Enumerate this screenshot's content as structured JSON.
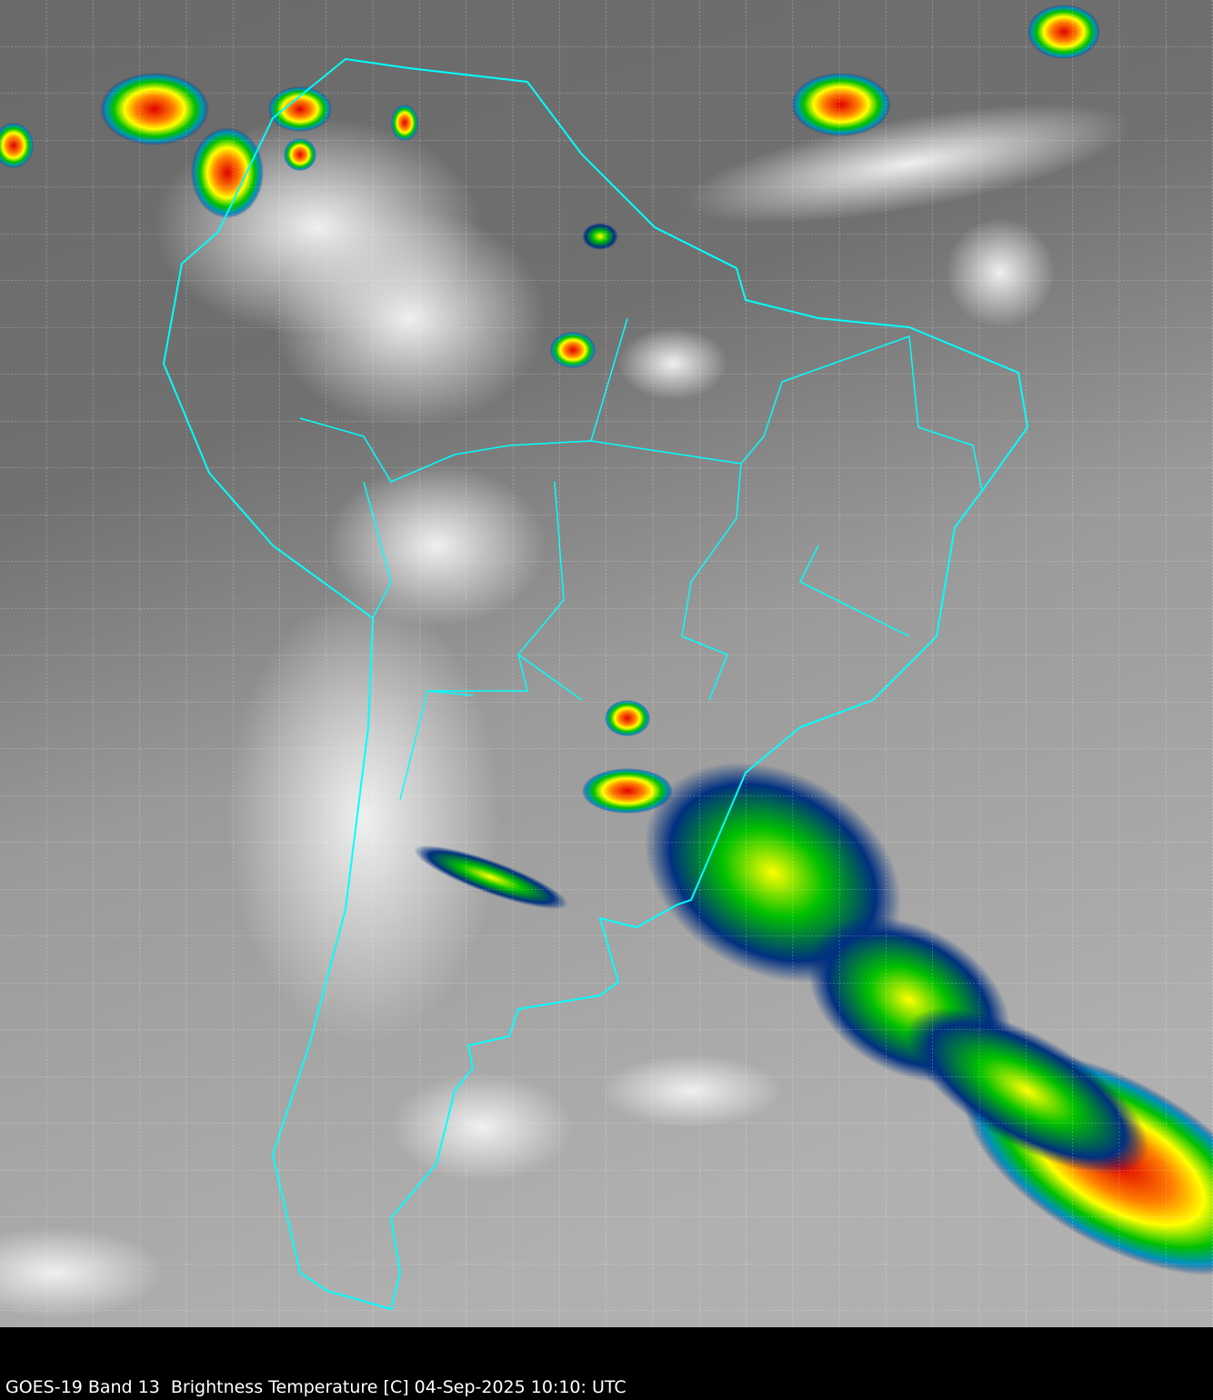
{
  "caption": "GOES-19 Band 13  Brightness Temperature [C] 04-Sep-2025 10:10: UTC",
  "colors": {
    "borders": "#00ffff",
    "grid": "#ffffff",
    "background": "#000000",
    "cold_cloud_scale": [
      "#003080",
      "#0090c0",
      "#00c000",
      "#ffff00",
      "#ff8000",
      "#e00000",
      "#808080"
    ]
  },
  "map": {
    "region": "South America",
    "graticule": "dashed",
    "overlay": "country and state borders"
  }
}
